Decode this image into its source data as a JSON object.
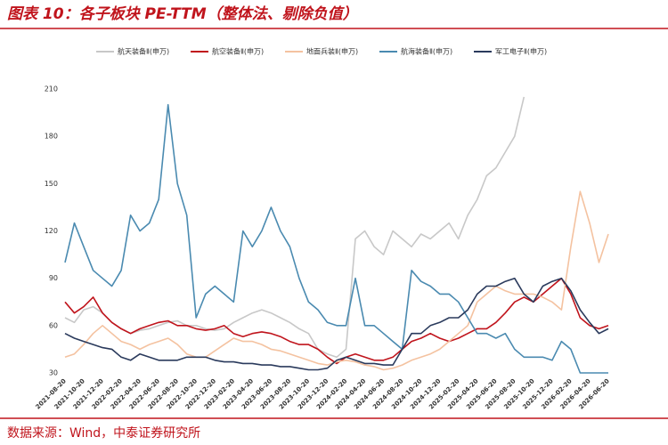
{
  "chart_data": {
    "type": "line",
    "title": "图表 10：各子板块 PE-TTM（整体法、剔除负值）",
    "source": "数据来源：Wind，中泰证券研究所",
    "categories": [
      "2021-08-20",
      null,
      "2021-10-20",
      null,
      "2021-12-20",
      null,
      "2022-02-20",
      null,
      "2022-04-20",
      null,
      "2022-06-20",
      null,
      "2022-08-20",
      null,
      "2022-10-20",
      null,
      "2022-12-20",
      null,
      "2023-02-20",
      null,
      "2023-04-20",
      null,
      "2023-06-20",
      null,
      "2023-08-20",
      null,
      "2023-10-20",
      null,
      "2023-12-20",
      null,
      "2024-02-20",
      null,
      "2024-04-20",
      null,
      "2024-06-20",
      null,
      "2024-08-20",
      null,
      "2024-10-20",
      null,
      "2024-12-20",
      null,
      "2025-02-20",
      null,
      "2025-04-20",
      null,
      "2025-06-20",
      null,
      "2025-08-20",
      null,
      "2025-10-20",
      null,
      "2025-12-20",
      null,
      "2026-02-20",
      null,
      "2026-04-20",
      null,
      "2026-06-20"
    ],
    "series": [
      {
        "name": "航天装备Ⅱ(申万)",
        "color": "#c8c8c8",
        "values": [
          65,
          62,
          70,
          72,
          68,
          62,
          58,
          55,
          57,
          58,
          60,
          62,
          63,
          60,
          60,
          58,
          57,
          58,
          62,
          65,
          68,
          70,
          68,
          65,
          62,
          58,
          55,
          45,
          42,
          40,
          45,
          115,
          120,
          110,
          105,
          120,
          115,
          110,
          118,
          115,
          120,
          125,
          115,
          130,
          140,
          155,
          160,
          170,
          180,
          205,
          null,
          null,
          null,
          null,
          null,
          null,
          null,
          null,
          null
        ]
      },
      {
        "name": "航空装备Ⅱ(申万)",
        "color": "#c0141c",
        "values": [
          75,
          68,
          72,
          78,
          68,
          62,
          58,
          55,
          58,
          60,
          62,
          63,
          60,
          60,
          58,
          57,
          58,
          60,
          55,
          53,
          55,
          56,
          55,
          53,
          50,
          48,
          48,
          45,
          40,
          36,
          40,
          42,
          40,
          38,
          38,
          40,
          45,
          50,
          52,
          55,
          52,
          50,
          52,
          55,
          58,
          58,
          62,
          68,
          75,
          78,
          75,
          80,
          85,
          90,
          80,
          65,
          60,
          58,
          60
        ]
      },
      {
        "name": "地面兵装Ⅱ(申万)",
        "color": "#f4c2a0",
        "values": [
          40,
          42,
          48,
          55,
          60,
          55,
          50,
          48,
          45,
          48,
          50,
          52,
          48,
          42,
          40,
          40,
          44,
          48,
          52,
          50,
          50,
          48,
          45,
          44,
          42,
          40,
          38,
          36,
          35,
          37,
          38,
          37,
          35,
          34,
          32,
          33,
          35,
          38,
          40,
          42,
          45,
          50,
          55,
          60,
          75,
          80,
          85,
          82,
          80,
          80,
          80,
          78,
          75,
          70,
          110,
          145,
          125,
          100,
          118
        ]
      },
      {
        "name": "航海装备Ⅱ(申万)",
        "color": "#4a8ab0",
        "values": [
          100,
          125,
          110,
          95,
          90,
          85,
          95,
          130,
          120,
          125,
          140,
          200,
          150,
          130,
          65,
          80,
          85,
          80,
          75,
          120,
          110,
          120,
          135,
          120,
          110,
          90,
          75,
          70,
          62,
          60,
          60,
          90,
          60,
          60,
          55,
          50,
          45,
          95,
          88,
          85,
          80,
          80,
          75,
          65,
          55,
          55,
          52,
          55,
          45,
          40,
          40,
          40,
          38,
          50,
          45,
          30,
          30,
          30,
          30
        ]
      },
      {
        "name": "军工电子Ⅱ(申万)",
        "color": "#2a3a5c",
        "values": [
          55,
          52,
          50,
          48,
          46,
          45,
          40,
          38,
          42,
          40,
          38,
          38,
          38,
          40,
          40,
          40,
          38,
          37,
          37,
          36,
          36,
          35,
          35,
          34,
          34,
          33,
          32,
          32,
          33,
          38,
          40,
          38,
          36,
          36,
          35,
          35,
          45,
          55,
          55,
          60,
          62,
          65,
          65,
          70,
          80,
          85,
          85,
          88,
          90,
          80,
          75,
          85,
          88,
          90,
          82,
          70,
          62,
          55,
          58
        ]
      }
    ],
    "ylim": [
      30,
      210
    ],
    "yticks": [
      30,
      60,
      90,
      120,
      150,
      180,
      210
    ],
    "grid": false
  }
}
